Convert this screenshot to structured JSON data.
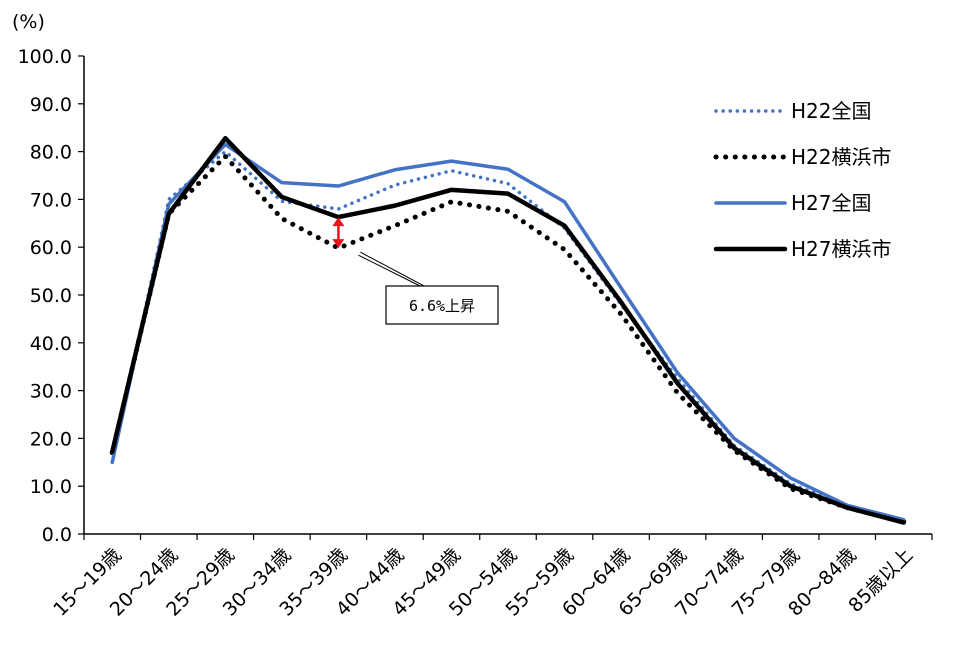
{
  "chart_data": {
    "type": "line",
    "title": "",
    "xlabel": "",
    "ylabel": "(%)",
    "ylim": [
      0,
      100
    ],
    "ytick_step": 10,
    "grid": false,
    "legend_position": "right",
    "categories": [
      "15～19歳",
      "20～24歳",
      "25～29歳",
      "30～34歳",
      "35～39歳",
      "40～44歳",
      "45～49歳",
      "50～54歳",
      "55～59歳",
      "60～64歳",
      "65～69歳",
      "70～74歳",
      "75～79歳",
      "80～84歳",
      "85歳以上"
    ],
    "series": [
      {
        "name": "H22全国",
        "style": "dotted",
        "color": "#4472c4",
        "values": [
          15.0,
          70.0,
          80.0,
          69.6,
          68.0,
          73.0,
          76.0,
          73.3,
          64.0,
          48.0,
          32.5,
          18.5,
          10.5,
          6.0,
          2.8
        ]
      },
      {
        "name": "H22横浜市",
        "style": "dotted",
        "color": "#000000",
        "values": [
          17.0,
          67.0,
          79.0,
          66.0,
          59.8,
          64.5,
          69.5,
          67.5,
          59.5,
          46.0,
          29.5,
          17.5,
          9.5,
          5.5,
          2.6
        ]
      },
      {
        "name": "H27全国",
        "style": "solid",
        "color": "#4472c4",
        "values": [
          15.0,
          69.0,
          81.5,
          73.5,
          72.8,
          76.2,
          78.0,
          76.3,
          69.5,
          51.5,
          33.7,
          20.0,
          11.7,
          6.0,
          3.0
        ]
      },
      {
        "name": "H27横浜市",
        "style": "solid",
        "color": "#000000",
        "values": [
          17.2,
          67.0,
          82.8,
          70.5,
          66.3,
          68.7,
          72.0,
          71.2,
          64.5,
          48.5,
          31.5,
          18.0,
          10.0,
          5.5,
          2.4
        ]
      }
    ],
    "annotation": {
      "text": "6.6%上昇",
      "category_index": 4,
      "from_value": 59.8,
      "to_value": 66.3,
      "arrow_color": "#e8141c"
    }
  }
}
